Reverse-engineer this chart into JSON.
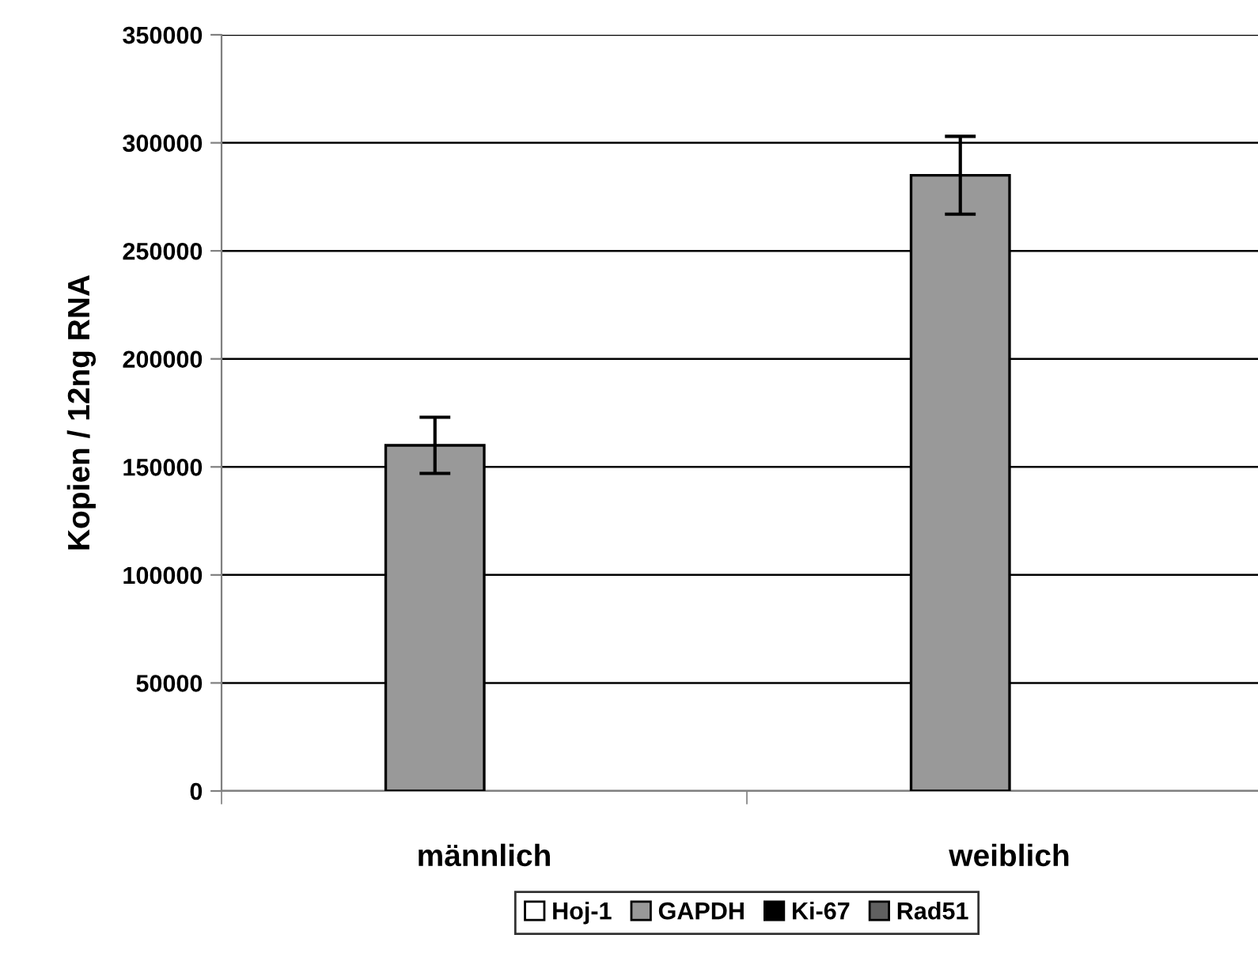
{
  "chart_data": {
    "type": "bar",
    "ylabel": "Kopien / 12ng RNA",
    "categories": [
      "männlich",
      "weiblich"
    ],
    "series": [
      {
        "name": "Hoj-1",
        "color": "#ffffff",
        "values": [
          null,
          null
        ]
      },
      {
        "name": "GAPDH",
        "color": "#999999",
        "values": [
          160000,
          285000
        ],
        "errors": [
          13000,
          18000
        ]
      },
      {
        "name": "Ki-67",
        "color": "#000000",
        "values": [
          null,
          null
        ]
      },
      {
        "name": "Rad51",
        "color": "#606060",
        "values": [
          null,
          null
        ]
      }
    ],
    "ylim": [
      0,
      350000
    ],
    "yticks": [
      0,
      50000,
      100000,
      150000,
      200000,
      250000,
      300000,
      350000
    ],
    "grid": "y",
    "legend": "bottom"
  }
}
